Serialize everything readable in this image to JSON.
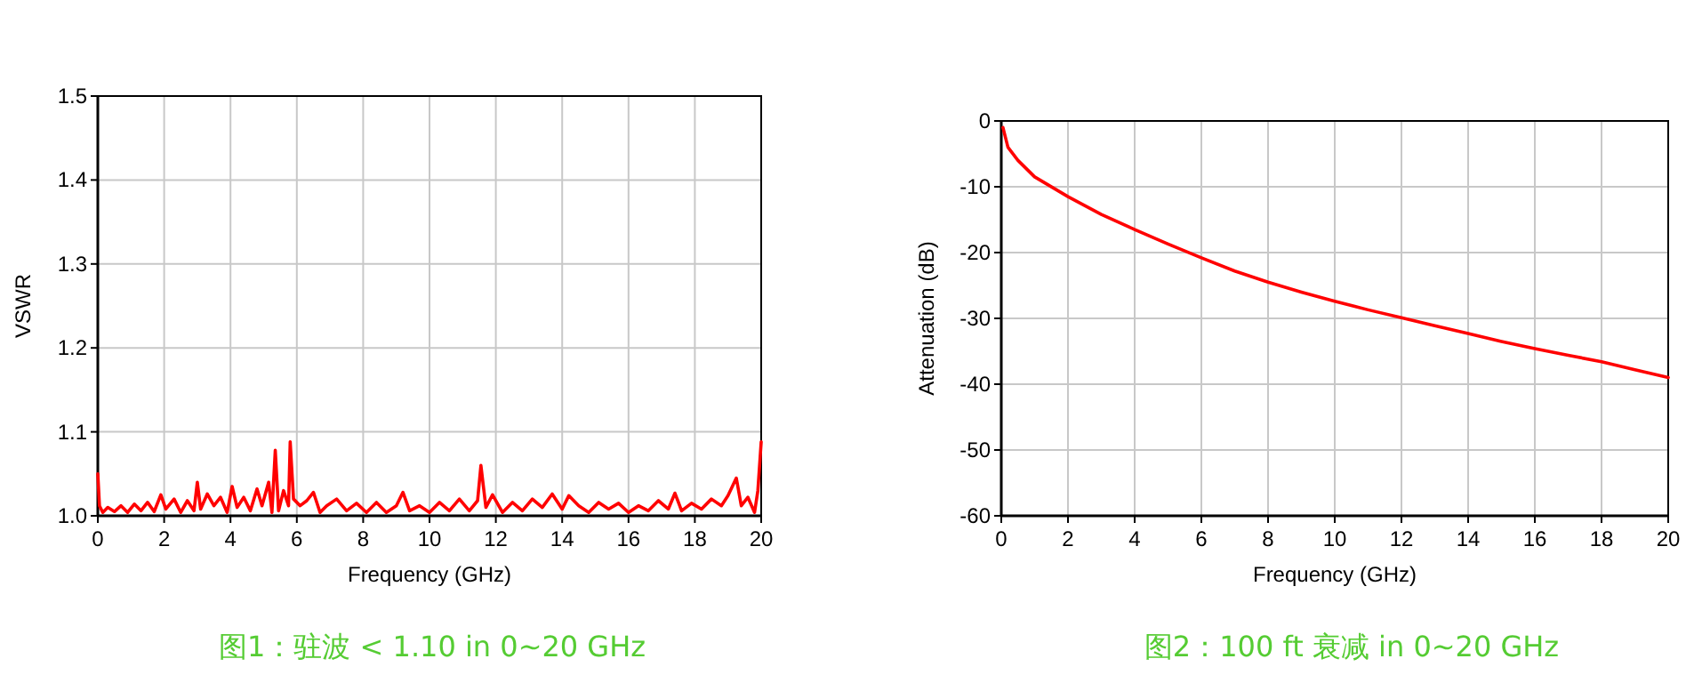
{
  "chart_data": [
    {
      "type": "line",
      "title": "图1：驻波 < 1.10 in 0~20 GHz",
      "xlabel": "Frequency (GHz)",
      "ylabel": "VSWR",
      "xlim": [
        0,
        20
      ],
      "ylim": [
        1.0,
        1.5
      ],
      "xticks": [
        0,
        2,
        4,
        6,
        8,
        10,
        12,
        14,
        16,
        18,
        20
      ],
      "yticks": [
        {
          "value": 1.0,
          "label": "1.0"
        },
        {
          "value": 1.1,
          "label": "1.1"
        },
        {
          "value": 1.2,
          "label": "1.2"
        },
        {
          "value": 1.3,
          "label": "1.3"
        },
        {
          "value": 1.4,
          "label": "1.4"
        },
        {
          "value": 1.5,
          "label": "1.5"
        }
      ],
      "grid": true,
      "series": [
        {
          "color": "#ff0000",
          "x": [
            0,
            0.05,
            0.15,
            0.3,
            0.5,
            0.7,
            0.9,
            1.1,
            1.3,
            1.5,
            1.7,
            1.9,
            2.05,
            2.3,
            2.5,
            2.7,
            2.9,
            3.0,
            3.1,
            3.3,
            3.5,
            3.7,
            3.9,
            4.05,
            4.2,
            4.4,
            4.6,
            4.8,
            4.95,
            5.15,
            5.25,
            5.35,
            5.45,
            5.6,
            5.75,
            5.8,
            5.9,
            6.1,
            6.3,
            6.5,
            6.7,
            6.9,
            7.2,
            7.5,
            7.8,
            8.1,
            8.4,
            8.7,
            9.0,
            9.2,
            9.4,
            9.7,
            10.0,
            10.3,
            10.6,
            10.9,
            11.2,
            11.45,
            11.55,
            11.7,
            11.9,
            12.2,
            12.5,
            12.8,
            13.1,
            13.4,
            13.7,
            14.0,
            14.2,
            14.5,
            14.8,
            15.1,
            15.4,
            15.7,
            16.0,
            16.3,
            16.6,
            16.9,
            17.2,
            17.4,
            17.6,
            17.9,
            18.2,
            18.5,
            18.8,
            19.0,
            19.25,
            19.4,
            19.6,
            19.8,
            19.9,
            20
          ],
          "values": [
            1.05,
            1.012,
            1.004,
            1.01,
            1.005,
            1.012,
            1.004,
            1.014,
            1.006,
            1.016,
            1.005,
            1.025,
            1.008,
            1.02,
            1.004,
            1.018,
            1.006,
            1.04,
            1.008,
            1.026,
            1.012,
            1.022,
            1.004,
            1.035,
            1.01,
            1.022,
            1.006,
            1.032,
            1.012,
            1.04,
            1.004,
            1.078,
            1.006,
            1.03,
            1.012,
            1.088,
            1.02,
            1.012,
            1.018,
            1.028,
            1.004,
            1.012,
            1.02,
            1.006,
            1.015,
            1.004,
            1.016,
            1.004,
            1.012,
            1.028,
            1.006,
            1.012,
            1.004,
            1.016,
            1.006,
            1.02,
            1.006,
            1.018,
            1.06,
            1.01,
            1.025,
            1.004,
            1.016,
            1.006,
            1.02,
            1.01,
            1.026,
            1.008,
            1.024,
            1.012,
            1.004,
            1.016,
            1.008,
            1.015,
            1.004,
            1.012,
            1.006,
            1.018,
            1.008,
            1.027,
            1.006,
            1.015,
            1.008,
            1.02,
            1.012,
            1.024,
            1.045,
            1.012,
            1.022,
            1.004,
            1.03,
            1.088
          ]
        }
      ]
    },
    {
      "type": "line",
      "title": "图2：100 ft 衰减 in 0~20 GHz",
      "xlabel": "Frequency (GHz)",
      "ylabel": "Attenuation (dB)",
      "xlim": [
        0,
        20
      ],
      "ylim": [
        -60,
        0
      ],
      "xticks": [
        0,
        2,
        4,
        6,
        8,
        10,
        12,
        14,
        16,
        18,
        20
      ],
      "yticks": [
        -60,
        -50,
        -40,
        -30,
        -20,
        -10,
        0
      ],
      "grid": true,
      "series": [
        {
          "color": "#ff0000",
          "x": [
            0.05,
            0.2,
            0.5,
            1,
            2,
            3,
            4,
            5,
            6,
            7,
            8,
            9,
            10,
            11,
            12,
            13,
            14,
            15,
            16,
            17,
            18,
            19,
            20
          ],
          "values": [
            -1,
            -4,
            -6,
            -8.5,
            -11.5,
            -14.2,
            -16.5,
            -18.7,
            -20.8,
            -22.8,
            -24.5,
            -26,
            -27.4,
            -28.7,
            -29.9,
            -31.1,
            -32.3,
            -33.5,
            -34.6,
            -35.6,
            -36.6,
            -37.8,
            -39
          ]
        }
      ]
    }
  ]
}
